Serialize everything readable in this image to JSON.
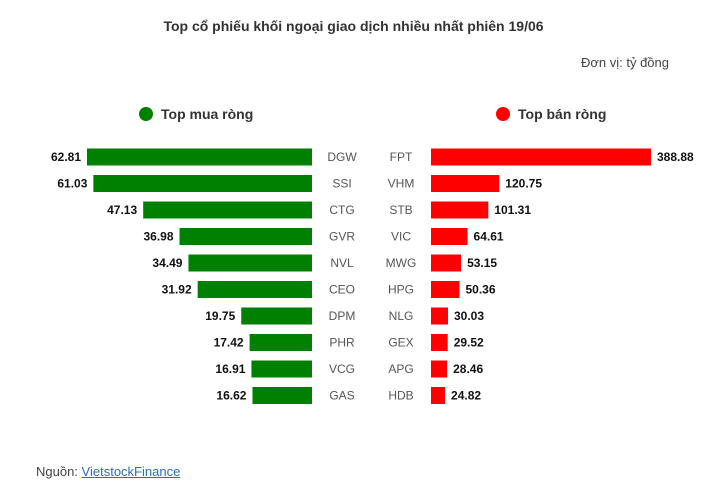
{
  "chart_data": {
    "type": "bar",
    "title": "Top cổ phiếu khối ngoại giao dịch nhiều nhất phiên 19/06",
    "unit": "Đơn vị: tỷ đồng",
    "series": [
      {
        "name": "Top mua ròng",
        "color": "#008000",
        "categories": [
          "DGW",
          "SSI",
          "CTG",
          "GVR",
          "NVL",
          "CEO",
          "DPM",
          "PHR",
          "VCG",
          "GAS"
        ],
        "values": [
          62.81,
          61.03,
          47.13,
          36.98,
          34.49,
          31.92,
          19.75,
          17.42,
          16.91,
          16.62
        ]
      },
      {
        "name": "Top bán ròng",
        "color": "#ff0000",
        "categories": [
          "FPT",
          "VHM",
          "STB",
          "VIC",
          "MWG",
          "HPG",
          "NLG",
          "GEX",
          "APG",
          "HDB"
        ],
        "values": [
          388.88,
          120.75,
          101.31,
          64.61,
          53.15,
          50.36,
          30.03,
          29.52,
          28.46,
          24.82
        ]
      }
    ]
  },
  "source": {
    "label": "Nguồn: ",
    "link_text": "VietstockFinance"
  }
}
